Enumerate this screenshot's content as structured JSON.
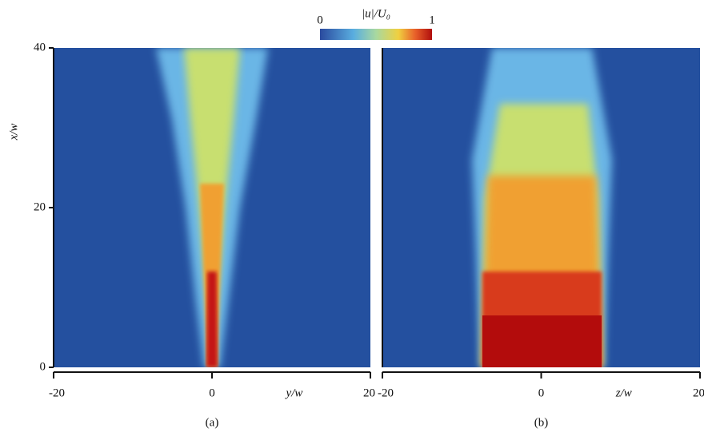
{
  "chart_data": [
    {
      "type": "heatmap",
      "xlabel": "y/w",
      "ylabel": "x/w",
      "xlim": [
        -20,
        20
      ],
      "ylim": [
        0,
        40
      ],
      "xticks": [
        -20,
        0,
        20
      ],
      "yticks": [
        0,
        20,
        40
      ],
      "caption": "(a)"
    },
    {
      "type": "heatmap",
      "xlabel": "z/w",
      "xlim": [
        -20,
        20
      ],
      "ylim": [
        0,
        40
      ],
      "xticks": [
        -20,
        0,
        20
      ],
      "caption": "(b)"
    }
  ],
  "colorbar": {
    "label": "|u|/U₀",
    "lim": [
      0,
      1
    ],
    "ticks": [
      0,
      1
    ]
  }
}
